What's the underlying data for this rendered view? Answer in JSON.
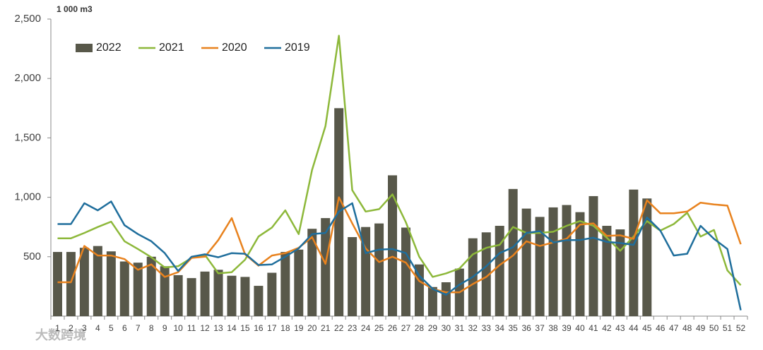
{
  "chart_data": {
    "type": "bar",
    "unit_label": "1 000 m3",
    "watermark": "大数跨境",
    "categories": [
      "1",
      "2",
      "3",
      "4",
      "5",
      "6",
      "7",
      "8",
      "9",
      "10",
      "11",
      "12",
      "13",
      "14",
      "15",
      "16",
      "17",
      "18",
      "19",
      "20",
      "21",
      "22",
      "23",
      "24",
      "25",
      "26",
      "27",
      "28",
      "29",
      "30",
      "31",
      "32",
      "33",
      "34",
      "35",
      "36",
      "37",
      "38",
      "39",
      "40",
      "41",
      "42",
      "43",
      "44",
      "45",
      "46",
      "47",
      "48",
      "49",
      "50",
      "51",
      "52"
    ],
    "series": [
      {
        "name": "2022",
        "type": "bar",
        "color": "#58584a",
        "values": [
          540,
          540,
          575,
          590,
          545,
          460,
          450,
          500,
          420,
          345,
          320,
          375,
          390,
          340,
          330,
          255,
          365,
          540,
          560,
          735,
          825,
          1750,
          665,
          750,
          780,
          1185,
          745,
          435,
          245,
          285,
          400,
          655,
          705,
          760,
          1070,
          905,
          835,
          915,
          935,
          875,
          1010,
          760,
          730,
          1065,
          990,
          null,
          null,
          null,
          null,
          null,
          null,
          null
        ]
      },
      {
        "name": "2021",
        "type": "line",
        "color": "#8db83a",
        "values": [
          655,
          655,
          700,
          750,
          795,
          630,
          565,
          495,
          410,
          420,
          490,
          515,
          360,
          370,
          475,
          670,
          745,
          890,
          690,
          1230,
          1600,
          2360,
          1060,
          880,
          900,
          1025,
          790,
          500,
          330,
          360,
          400,
          520,
          575,
          600,
          750,
          700,
          700,
          710,
          760,
          800,
          760,
          660,
          550,
          670,
          800,
          720,
          775,
          870,
          670,
          725,
          385,
          260
        ]
      },
      {
        "name": "2020",
        "type": "line",
        "color": "#e8821e",
        "values": [
          285,
          285,
          590,
          510,
          510,
          480,
          390,
          435,
          330,
          370,
          490,
          500,
          640,
          825,
          520,
          425,
          510,
          530,
          575,
          665,
          440,
          1000,
          780,
          570,
          455,
          500,
          450,
          295,
          230,
          200,
          200,
          270,
          330,
          430,
          510,
          630,
          590,
          620,
          650,
          770,
          780,
          675,
          680,
          650,
          975,
          865,
          865,
          880,
          955,
          940,
          930,
          605
        ]
      },
      {
        "name": "2019",
        "type": "line",
        "color": "#1f6e9c",
        "values": [
          775,
          775,
          950,
          890,
          965,
          765,
          690,
          630,
          530,
          380,
          500,
          520,
          495,
          530,
          525,
          430,
          435,
          500,
          570,
          690,
          700,
          880,
          950,
          530,
          560,
          565,
          530,
          340,
          230,
          180,
          265,
          330,
          420,
          530,
          580,
          700,
          715,
          620,
          640,
          640,
          660,
          625,
          615,
          600,
          830,
          720,
          510,
          525,
          760,
          650,
          565,
          50
        ]
      }
    ],
    "ylim": [
      0,
      2500
    ],
    "yticks": [
      500,
      {
        "value": 1000,
        "label": "1,000"
      },
      {
        "value": 1500,
        "label": "1,500"
      },
      {
        "value": 2000,
        "label": "2,000"
      },
      {
        "value": 2500,
        "label": "2,500"
      }
    ],
    "grid": false,
    "legend": "top-left"
  }
}
